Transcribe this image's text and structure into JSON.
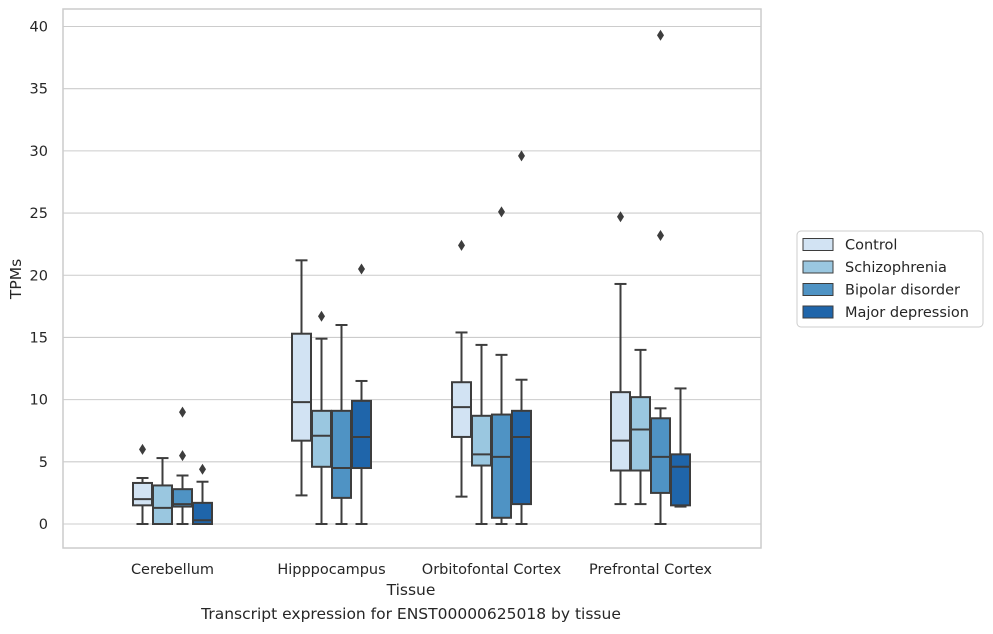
{
  "caption": "Transcript expression for ENST00000625018 by tissue",
  "chart_data": {
    "type": "boxplot",
    "title": "",
    "xlabel": "Tissue",
    "ylabel": "TPMs",
    "ylim": [
      -1.8,
      41.3
    ],
    "yticks": [
      0,
      5,
      10,
      15,
      20,
      25,
      30,
      35,
      40
    ],
    "grid": "horizontal",
    "legend_position": "right",
    "categories": [
      "Cerebellum",
      "Hipppocampus",
      "Orbitofontal Cortex",
      "Prefrontal Cortex"
    ],
    "series": [
      {
        "name": "Control",
        "color": "#d2e3f3",
        "boxes": [
          {
            "whislo": 0,
            "q1": 1.5,
            "median": 2.0,
            "q3": 3.3,
            "whishi": 3.7,
            "fliers": [
              6.0
            ]
          },
          {
            "whislo": 2.3,
            "q1": 6.7,
            "median": 9.8,
            "q3": 15.3,
            "whishi": 21.2,
            "fliers": []
          },
          {
            "whislo": 2.2,
            "q1": 7.0,
            "median": 9.4,
            "q3": 11.4,
            "whishi": 15.4,
            "fliers": [
              22.4
            ]
          },
          {
            "whislo": 1.6,
            "q1": 4.3,
            "median": 6.7,
            "q3": 10.6,
            "whishi": 19.3,
            "fliers": [
              24.7
            ]
          }
        ]
      },
      {
        "name": "Schizophrenia",
        "color": "#9ac7e0",
        "boxes": [
          {
            "whislo": 0,
            "q1": 0,
            "median": 1.3,
            "q3": 3.1,
            "whishi": 5.3,
            "fliers": []
          },
          {
            "whislo": 0,
            "q1": 4.6,
            "median": 7.1,
            "q3": 9.1,
            "whishi": 14.9,
            "fliers": [
              16.7
            ]
          },
          {
            "whislo": 0,
            "q1": 4.7,
            "median": 5.6,
            "q3": 8.7,
            "whishi": 14.4,
            "fliers": []
          },
          {
            "whislo": 1.6,
            "q1": 4.3,
            "median": 7.6,
            "q3": 10.2,
            "whishi": 14.0,
            "fliers": []
          }
        ]
      },
      {
        "name": "Bipolar disorder",
        "color": "#4f93c4",
        "boxes": [
          {
            "whislo": 0,
            "q1": 1.4,
            "median": 1.6,
            "q3": 2.8,
            "whishi": 3.9,
            "fliers": [
              5.5,
              9.0
            ]
          },
          {
            "whislo": 0,
            "q1": 2.1,
            "median": 4.5,
            "q3": 9.1,
            "whishi": 16.0,
            "fliers": []
          },
          {
            "whislo": 0,
            "q1": 0.5,
            "median": 5.4,
            "q3": 8.8,
            "whishi": 13.6,
            "fliers": [
              25.1
            ]
          },
          {
            "whislo": 0,
            "q1": 2.5,
            "median": 5.4,
            "q3": 8.5,
            "whishi": 9.3,
            "fliers": [
              23.2,
              39.3
            ]
          }
        ]
      },
      {
        "name": "Major depression",
        "color": "#1f65aa",
        "boxes": [
          {
            "whislo": 0,
            "q1": 0,
            "median": 0.3,
            "q3": 1.7,
            "whishi": 3.4,
            "fliers": [
              4.4
            ]
          },
          {
            "whislo": 0,
            "q1": 4.5,
            "median": 7.0,
            "q3": 9.9,
            "whishi": 11.5,
            "fliers": [
              20.5
            ]
          },
          {
            "whislo": 0,
            "q1": 1.6,
            "median": 7.0,
            "q3": 9.1,
            "whishi": 11.6,
            "fliers": [
              29.6
            ]
          },
          {
            "whislo": 1.4,
            "q1": 1.5,
            "median": 4.6,
            "q3": 5.6,
            "whishi": 10.9,
            "fliers": []
          }
        ]
      }
    ]
  }
}
